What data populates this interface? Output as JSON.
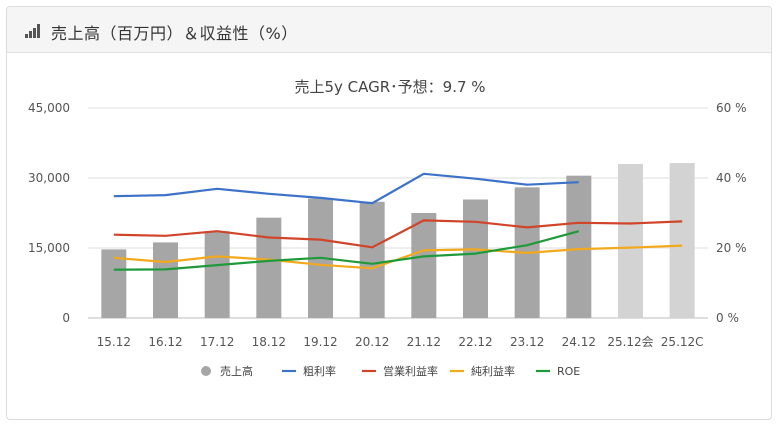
{
  "header": {
    "title": "売上高（百万円）＆収益性（%）"
  },
  "chart_data": {
    "type": "bar+line",
    "title": "売上5y CAGR･予想：9.7 %",
    "categories": [
      "15.12",
      "16.12",
      "17.12",
      "18.12",
      "19.12",
      "20.12",
      "21.12",
      "22.12",
      "23.12",
      "24.12",
      "25.12会",
      "25.12C"
    ],
    "y_left": {
      "ticks": [
        "45,000",
        "30,000",
        "15,000",
        "0"
      ],
      "range": [
        0,
        45000
      ]
    },
    "y_right": {
      "ticks": [
        "60 %",
        "40 %",
        "20 %",
        "0 %"
      ],
      "range": [
        0,
        60
      ]
    },
    "bars": {
      "name": "売上高",
      "values": [
        14700,
        16200,
        18600,
        21500,
        25600,
        24900,
        22500,
        25400,
        28000,
        30500,
        33000,
        33200
      ],
      "colors": [
        "#a6a6a6",
        "#a6a6a6",
        "#a6a6a6",
        "#a6a6a6",
        "#a6a6a6",
        "#a6a6a6",
        "#a6a6a6",
        "#a6a6a6",
        "#a6a6a6",
        "#a6a6a6",
        "#d3d3d3",
        "#d3d3d3"
      ]
    },
    "series": [
      {
        "name": "粗利率",
        "color": "#3d72c9",
        "values": [
          34.8,
          35.1,
          36.9,
          35.5,
          34.3,
          32.8,
          41.2,
          39.8,
          38.1,
          38.8,
          null,
          null
        ]
      },
      {
        "name": "営業利益率",
        "color": "#d0452a",
        "values": [
          23.8,
          23.5,
          24.8,
          23.0,
          22.4,
          20.2,
          27.9,
          27.5,
          25.9,
          27.2,
          27.0,
          27.6
        ]
      },
      {
        "name": "純利益率",
        "color": "#f2a91c",
        "values": [
          17.2,
          16.0,
          17.6,
          16.7,
          15.2,
          14.2,
          19.3,
          19.6,
          18.6,
          19.7,
          20.1,
          20.7
        ]
      },
      {
        "name": "ROE",
        "color": "#1f9a3a",
        "values": [
          13.8,
          13.9,
          15.1,
          16.3,
          17.2,
          15.5,
          17.6,
          18.4,
          20.8,
          24.8,
          null,
          null
        ]
      }
    ],
    "legend_position": "bottom",
    "grid": true
  }
}
